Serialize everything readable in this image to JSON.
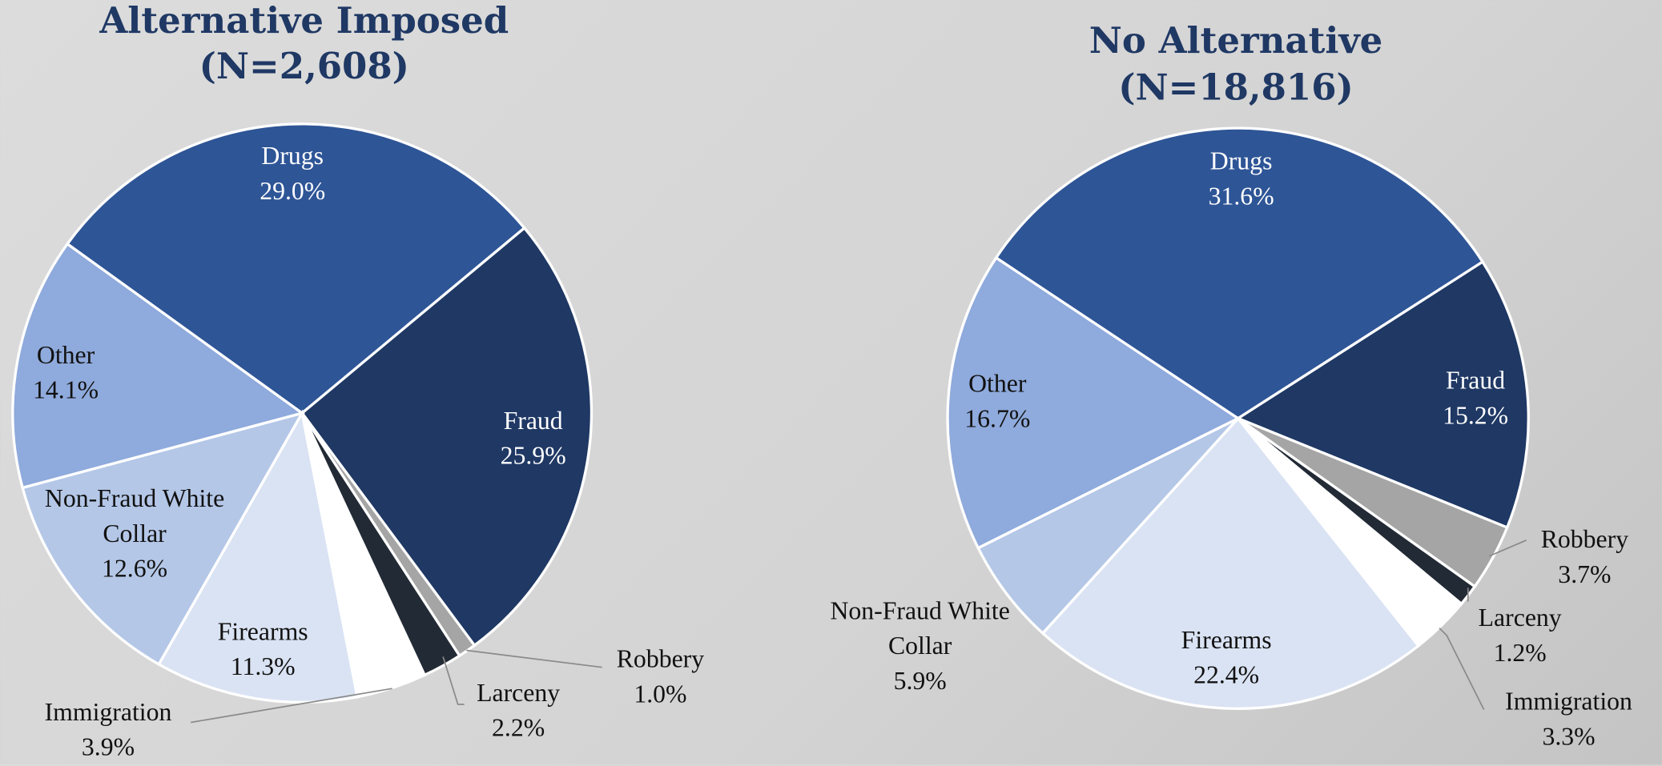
{
  "chart_data": [
    {
      "type": "pie",
      "title": "Alternative Imposed",
      "subtitle": "(N=2,608)",
      "categories": [
        "Drugs",
        "Fraud",
        "Robbery",
        "Larceny",
        "Immigration",
        "Firearms",
        "Non-Fraud White Collar",
        "Other"
      ],
      "values": [
        29.0,
        25.9,
        1.0,
        2.2,
        3.9,
        11.3,
        12.6,
        14.1
      ],
      "value_labels": [
        "29.0%",
        "25.9%",
        "1.0%",
        "2.2%",
        "3.9%",
        "11.3%",
        "12.6%",
        "14.1%"
      ],
      "colors": [
        "#2e5596",
        "#1f3864",
        "#a5a5a5",
        "#222a35",
        "#ffffff",
        "#dae3f3",
        "#b4c7e7",
        "#8faadc"
      ]
    },
    {
      "type": "pie",
      "title": "No Alternative",
      "subtitle": "(N=18,816)",
      "categories": [
        "Drugs",
        "Fraud",
        "Robbery",
        "Larceny",
        "Immigration",
        "Firearms",
        "Non-Fraud White Collar",
        "Other"
      ],
      "values": [
        31.6,
        15.2,
        3.7,
        1.2,
        3.3,
        22.4,
        5.9,
        16.7
      ],
      "value_labels": [
        "31.6%",
        "15.2%",
        "3.7%",
        "1.2%",
        "3.3%",
        "22.4%",
        "5.9%",
        "16.7%"
      ],
      "colors": [
        "#2e5596",
        "#1f3864",
        "#a5a5a5",
        "#222a35",
        "#ffffff",
        "#dae3f3",
        "#b4c7e7",
        "#8faadc"
      ]
    }
  ]
}
